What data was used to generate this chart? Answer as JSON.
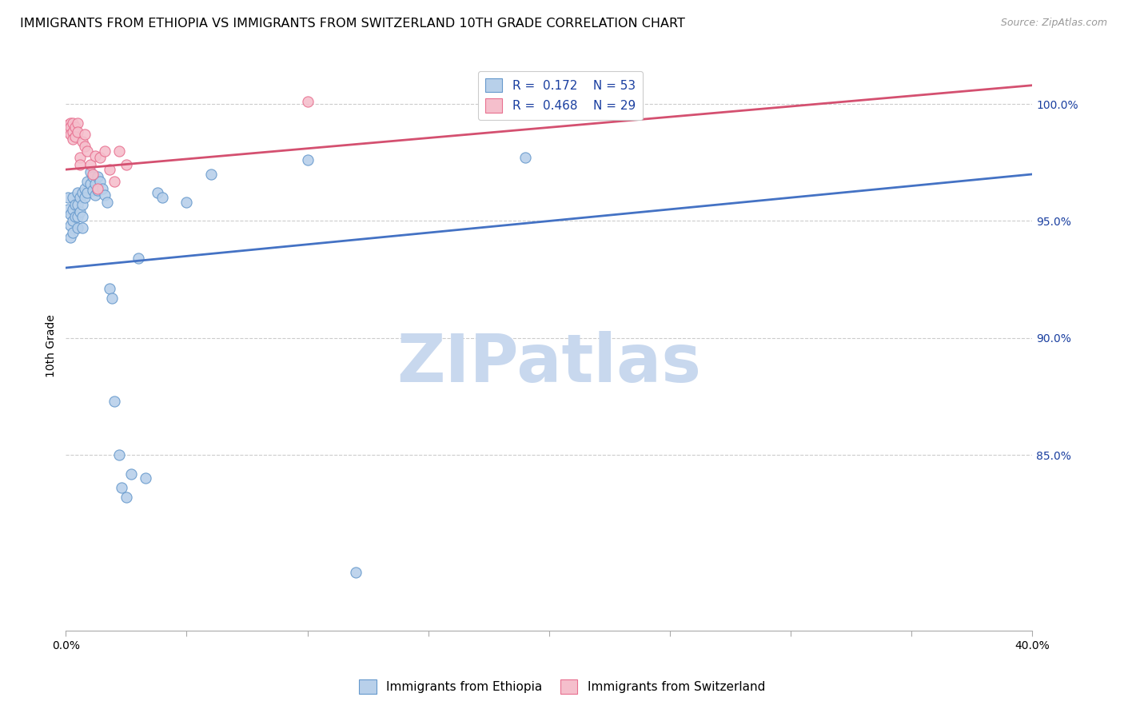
{
  "title": "IMMIGRANTS FROM ETHIOPIA VS IMMIGRANTS FROM SWITZERLAND 10TH GRADE CORRELATION CHART",
  "source": "Source: ZipAtlas.com",
  "ylabel": "10th Grade",
  "ytick_labels": [
    "100.0%",
    "95.0%",
    "90.0%",
    "85.0%"
  ],
  "ytick_values": [
    1.0,
    0.95,
    0.9,
    0.85
  ],
  "xlim": [
    0.0,
    0.4
  ],
  "ylim": [
    0.775,
    1.018
  ],
  "watermark": "ZIPatlas",
  "ethiopia_x": [
    0.001,
    0.001,
    0.002,
    0.002,
    0.002,
    0.003,
    0.003,
    0.003,
    0.003,
    0.004,
    0.004,
    0.005,
    0.005,
    0.005,
    0.005,
    0.006,
    0.006,
    0.007,
    0.007,
    0.007,
    0.007,
    0.008,
    0.008,
    0.009,
    0.009,
    0.01,
    0.01,
    0.011,
    0.011,
    0.012,
    0.012,
    0.013,
    0.013,
    0.014,
    0.015,
    0.016,
    0.017,
    0.018,
    0.019,
    0.02,
    0.022,
    0.023,
    0.025,
    0.027,
    0.03,
    0.033,
    0.038,
    0.04,
    0.05,
    0.06,
    0.1,
    0.12,
    0.19
  ],
  "ethiopia_y": [
    0.96,
    0.955,
    0.953,
    0.948,
    0.943,
    0.96,
    0.955,
    0.95,
    0.945,
    0.957,
    0.952,
    0.962,
    0.957,
    0.952,
    0.947,
    0.96,
    0.954,
    0.962,
    0.957,
    0.952,
    0.947,
    0.964,
    0.96,
    0.967,
    0.962,
    0.971,
    0.966,
    0.969,
    0.963,
    0.966,
    0.961,
    0.969,
    0.963,
    0.967,
    0.964,
    0.961,
    0.958,
    0.921,
    0.917,
    0.873,
    0.85,
    0.836,
    0.832,
    0.842,
    0.934,
    0.84,
    0.962,
    0.96,
    0.958,
    0.97,
    0.976,
    0.8,
    0.977
  ],
  "ethiopia_R": 0.172,
  "ethiopia_N": 53,
  "ethiopia_trend_x": [
    0.0,
    0.4
  ],
  "ethiopia_trend_y": [
    0.93,
    0.97
  ],
  "switzerland_x": [
    0.001,
    0.001,
    0.002,
    0.002,
    0.002,
    0.003,
    0.003,
    0.003,
    0.004,
    0.004,
    0.005,
    0.005,
    0.006,
    0.006,
    0.007,
    0.008,
    0.008,
    0.009,
    0.01,
    0.011,
    0.012,
    0.013,
    0.014,
    0.016,
    0.018,
    0.02,
    0.022,
    0.025,
    0.1
  ],
  "switzerland_y": [
    0.991,
    0.988,
    0.992,
    0.99,
    0.987,
    0.992,
    0.988,
    0.985,
    0.99,
    0.986,
    0.992,
    0.988,
    0.977,
    0.974,
    0.984,
    0.987,
    0.982,
    0.98,
    0.974,
    0.97,
    0.978,
    0.964,
    0.977,
    0.98,
    0.972,
    0.967,
    0.98,
    0.974,
    1.001
  ],
  "switzerland_R": 0.468,
  "switzerland_N": 29,
  "switzerland_trend_x": [
    0.0,
    0.4
  ],
  "switzerland_trend_y": [
    0.972,
    1.008
  ],
  "ethiopia_color": "#b8d0ea",
  "ethiopia_edge_color": "#6699cc",
  "switzerland_color": "#f5bfcc",
  "switzerland_edge_color": "#e87090",
  "trend_ethiopia_color": "#4472c4",
  "trend_switzerland_color": "#d45070",
  "legend_label_color": "#1a3fa0",
  "title_fontsize": 11.5,
  "source_fontsize": 9,
  "axis_label_fontsize": 10,
  "tick_fontsize": 10,
  "legend_fontsize": 11,
  "watermark_color": "#c8d8ee",
  "watermark_fontsize": 60,
  "xtick_count": 9
}
